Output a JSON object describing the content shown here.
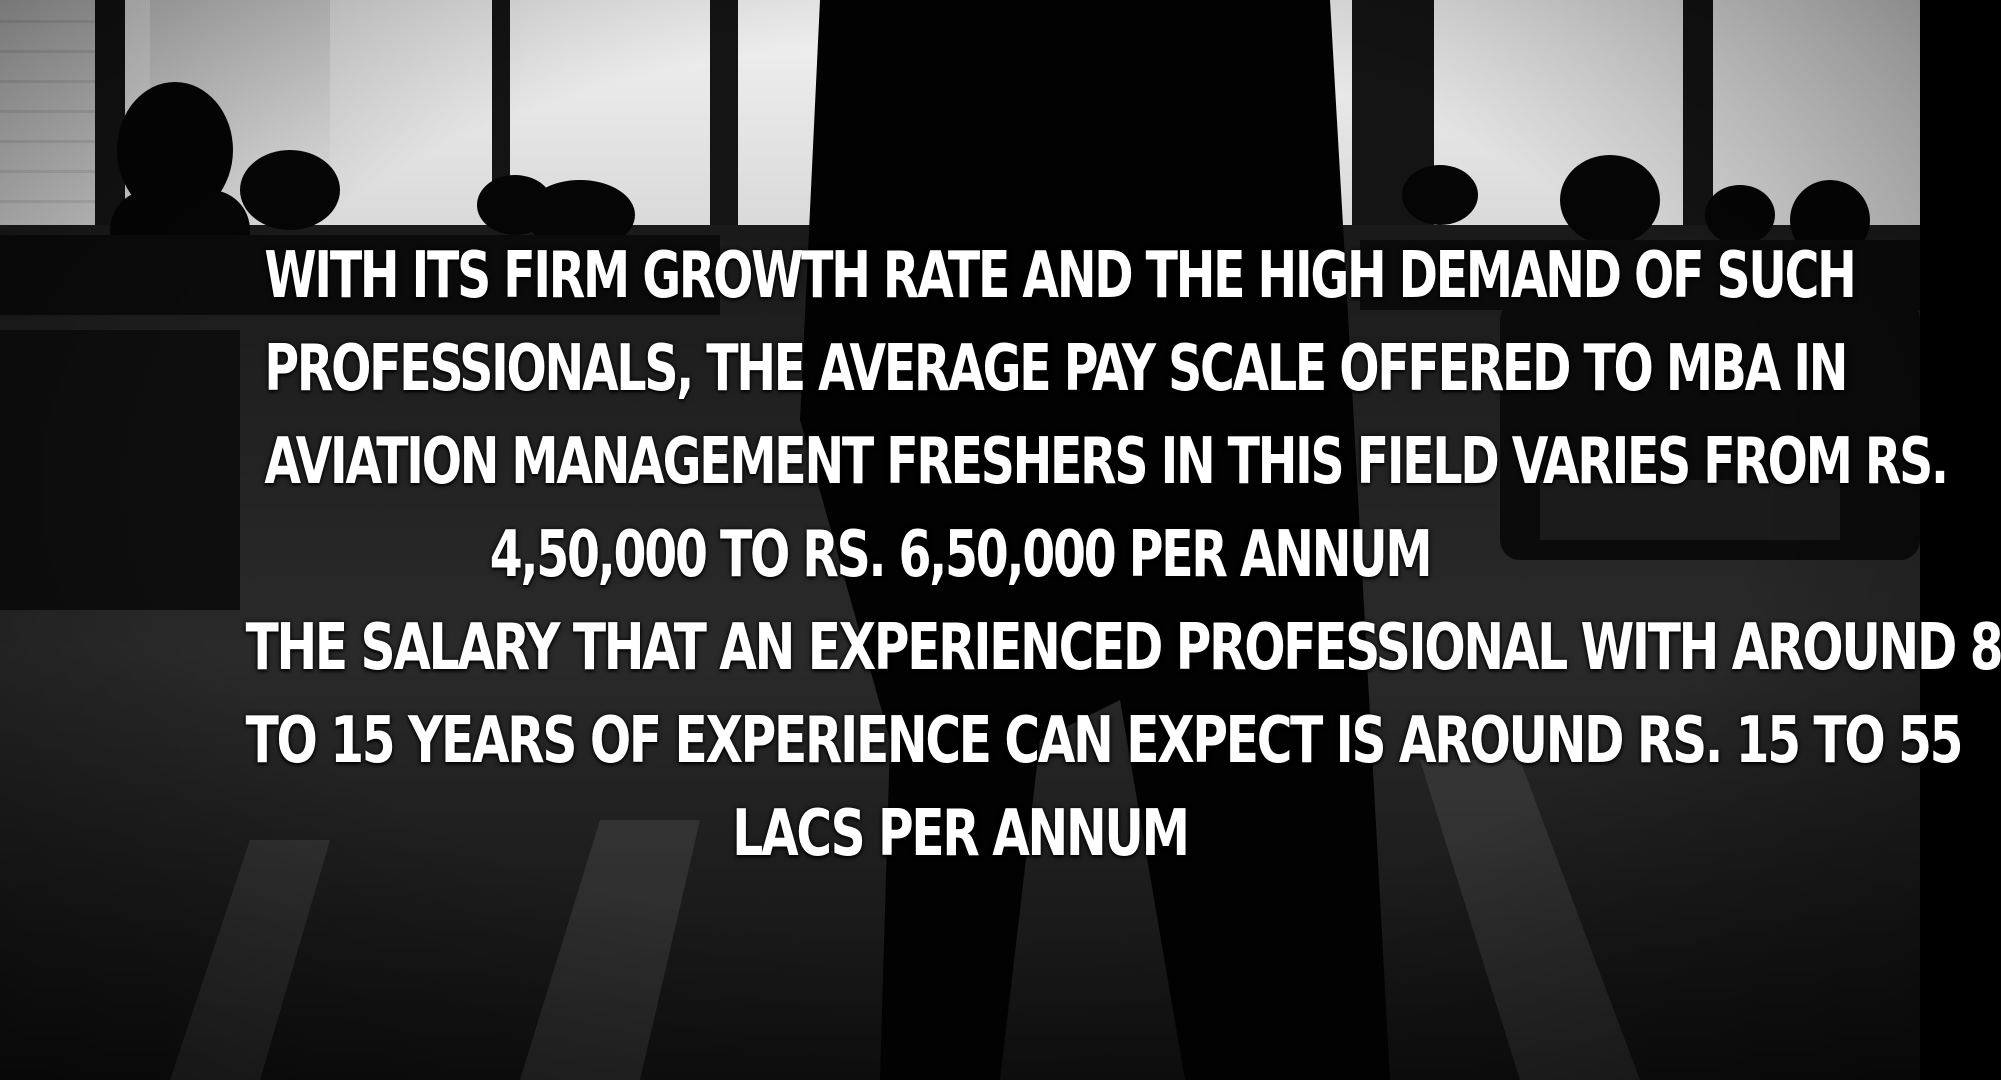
{
  "caption": {
    "paragraph1_lines": [
      "WITH ITS FIRM GROWTH RATE AND THE HIGH DEMAND OF SUCH",
      "PROFESSIONALS, THE AVERAGE PAY SCALE OFFERED TO MBA IN",
      "AVIATION MANAGEMENT FRESHERS IN THIS FIELD VARIES FROM RS.",
      "4,50,000 TO RS. 6,50,000 PER ANNUM"
    ],
    "paragraph2_lines": [
      "THE SALARY THAT AN EXPERIENCED PROFESSIONAL WITH AROUND 8",
      "TO 15 YEARS OF EXPERIENCE CAN EXPECT IS AROUND RS. 15 TO 55",
      "LACS PER ANNUM"
    ]
  },
  "colors": {
    "caption_text": "#ffffff",
    "window_light": "#e9e9e9",
    "silhouette": "#050505"
  }
}
